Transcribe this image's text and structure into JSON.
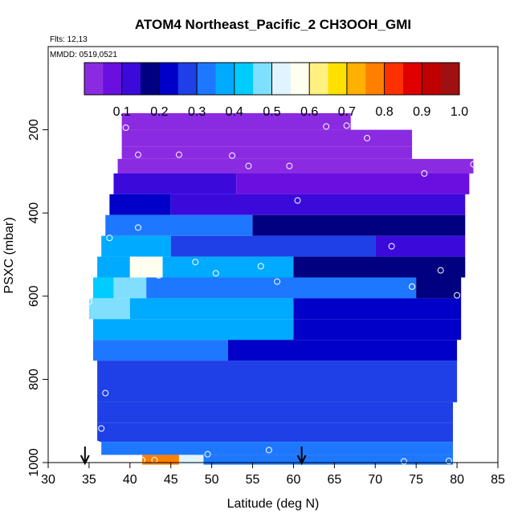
{
  "chart_data": {
    "type": "heatmap",
    "title": "ATOM4 Northeast_Pacific_2 CH3OOH_GMI",
    "annotations": [
      "Flts: 12,13",
      "MMDD: 0519,0521"
    ],
    "xlabel": "Latitude (deg N)",
    "ylabel": "PSXC (mbar)",
    "xlim": [
      30,
      85
    ],
    "ylim": [
      1000,
      0
    ],
    "x_ticks": [
      "30",
      "35",
      "40",
      "45",
      "50",
      "55",
      "60",
      "65",
      "70",
      "75",
      "80",
      "85"
    ],
    "y_ticks": [
      "200",
      "400",
      "600",
      "800",
      "1000"
    ],
    "colorbar": {
      "range": [
        0.0,
        1.0
      ],
      "tick_labels": [
        "0.1",
        "0.2",
        "0.3",
        "0.4",
        "0.5",
        "0.6",
        "0.7",
        "0.8",
        "0.9",
        "1.0"
      ],
      "colors": [
        "#8a2be2",
        "#6a0fe0",
        "#3b0adb",
        "#000080",
        "#0000c8",
        "#1e40e6",
        "#1e78ff",
        "#00aaff",
        "#00ccff",
        "#80dfff",
        "#e0f4ff",
        "#fffff0",
        "#fff080",
        "#ffe000",
        "#ffb000",
        "#ff8000",
        "#ff3000",
        "#e00000",
        "#c00000",
        "#a01010"
      ]
    },
    "rows": [
      {
        "p": 180,
        "segments": [
          [
            39.0,
            67.0,
            0.02
          ]
        ]
      },
      {
        "p": 220,
        "segments": [
          [
            39.0,
            74.5,
            0.03
          ]
        ]
      },
      {
        "p": 260,
        "segments": [
          [
            39.0,
            74.5,
            0.04
          ]
        ]
      },
      {
        "p": 280,
        "segments": [
          [
            38.5,
            82.0,
            0.02
          ]
        ]
      },
      {
        "p": 330,
        "segments": [
          [
            38.0,
            53.0,
            0.1
          ],
          [
            53.0,
            81.5,
            0.08
          ]
        ]
      },
      {
        "p": 380,
        "segments": [
          [
            37.5,
            45.0,
            0.22
          ],
          [
            45.0,
            81.0,
            0.1
          ]
        ]
      },
      {
        "p": 430,
        "segments": [
          [
            37.0,
            55.0,
            0.3
          ],
          [
            55.0,
            81.0,
            0.15
          ]
        ]
      },
      {
        "p": 480,
        "segments": [
          [
            36.5,
            45.0,
            0.35
          ],
          [
            45.0,
            70.0,
            0.25
          ],
          [
            70.0,
            81.0,
            0.12
          ]
        ]
      },
      {
        "p": 530,
        "segments": [
          [
            36.0,
            40.0,
            0.38
          ],
          [
            40.0,
            44.0,
            0.55
          ],
          [
            44.0,
            60.0,
            0.35
          ],
          [
            60.0,
            81.0,
            0.15
          ]
        ]
      },
      {
        "p": 580,
        "segments": [
          [
            35.5,
            38.0,
            0.4
          ],
          [
            38.0,
            42.0,
            0.48
          ],
          [
            42.0,
            75.0,
            0.3
          ],
          [
            75.0,
            80.5,
            0.15
          ]
        ]
      },
      {
        "p": 630,
        "segments": [
          [
            35.0,
            40.0,
            0.45
          ],
          [
            40.0,
            60.0,
            0.36
          ],
          [
            60.0,
            80.5,
            0.2
          ]
        ]
      },
      {
        "p": 680,
        "segments": [
          [
            35.5,
            60.0,
            0.38
          ],
          [
            60.0,
            80.5,
            0.22
          ]
        ]
      },
      {
        "p": 730,
        "segments": [
          [
            35.5,
            52.0,
            0.32
          ],
          [
            52.0,
            80.0,
            0.22
          ]
        ]
      },
      {
        "p": 780,
        "segments": [
          [
            36.0,
            80.0,
            0.26
          ]
        ]
      },
      {
        "p": 830,
        "segments": [
          [
            36.0,
            80.0,
            0.27
          ]
        ]
      },
      {
        "p": 880,
        "segments": [
          [
            36.0,
            79.5,
            0.28
          ]
        ]
      },
      {
        "p": 930,
        "segments": [
          [
            36.0,
            79.5,
            0.29
          ]
        ]
      },
      {
        "p": 970,
        "segments": [
          [
            36.5,
            79.5,
            0.3
          ]
        ]
      },
      {
        "p": 993,
        "segments": [
          [
            41.5,
            46.0,
            0.75
          ],
          [
            46.0,
            49.0,
            0.5
          ],
          [
            49.0,
            79.5,
            0.3
          ]
        ]
      }
    ],
    "points": [
      {
        "lat": 39.5,
        "p": 195
      },
      {
        "lat": 41.0,
        "p": 260
      },
      {
        "lat": 46.0,
        "p": 260
      },
      {
        "lat": 52.5,
        "p": 262
      },
      {
        "lat": 54.5,
        "p": 287
      },
      {
        "lat": 59.5,
        "p": 287
      },
      {
        "lat": 64.0,
        "p": 192
      },
      {
        "lat": 66.5,
        "p": 190
      },
      {
        "lat": 69.0,
        "p": 220
      },
      {
        "lat": 76.0,
        "p": 305
      },
      {
        "lat": 82.0,
        "p": 283
      },
      {
        "lat": 60.5,
        "p": 370
      },
      {
        "lat": 37.5,
        "p": 460
      },
      {
        "lat": 41.0,
        "p": 435
      },
      {
        "lat": 41.5,
        "p": 520
      },
      {
        "lat": 41.8,
        "p": 535
      },
      {
        "lat": 43.5,
        "p": 550
      },
      {
        "lat": 48.0,
        "p": 518
      },
      {
        "lat": 50.5,
        "p": 545
      },
      {
        "lat": 56.0,
        "p": 528
      },
      {
        "lat": 58.0,
        "p": 565
      },
      {
        "lat": 72.0,
        "p": 480
      },
      {
        "lat": 74.5,
        "p": 577
      },
      {
        "lat": 78.0,
        "p": 538
      },
      {
        "lat": 80.0,
        "p": 598
      },
      {
        "lat": 35.0,
        "p": 613
      },
      {
        "lat": 37.0,
        "p": 833
      },
      {
        "lat": 36.5,
        "p": 918
      },
      {
        "lat": 36.0,
        "p": 955
      },
      {
        "lat": 41.5,
        "p": 994
      },
      {
        "lat": 43.0,
        "p": 994
      },
      {
        "lat": 49.5,
        "p": 980
      },
      {
        "lat": 57.0,
        "p": 970
      },
      {
        "lat": 73.5,
        "p": 997
      },
      {
        "lat": 79.0,
        "p": 996
      }
    ],
    "arrows": [
      {
        "lat": 34.5
      },
      {
        "lat": 61.0
      }
    ]
  }
}
